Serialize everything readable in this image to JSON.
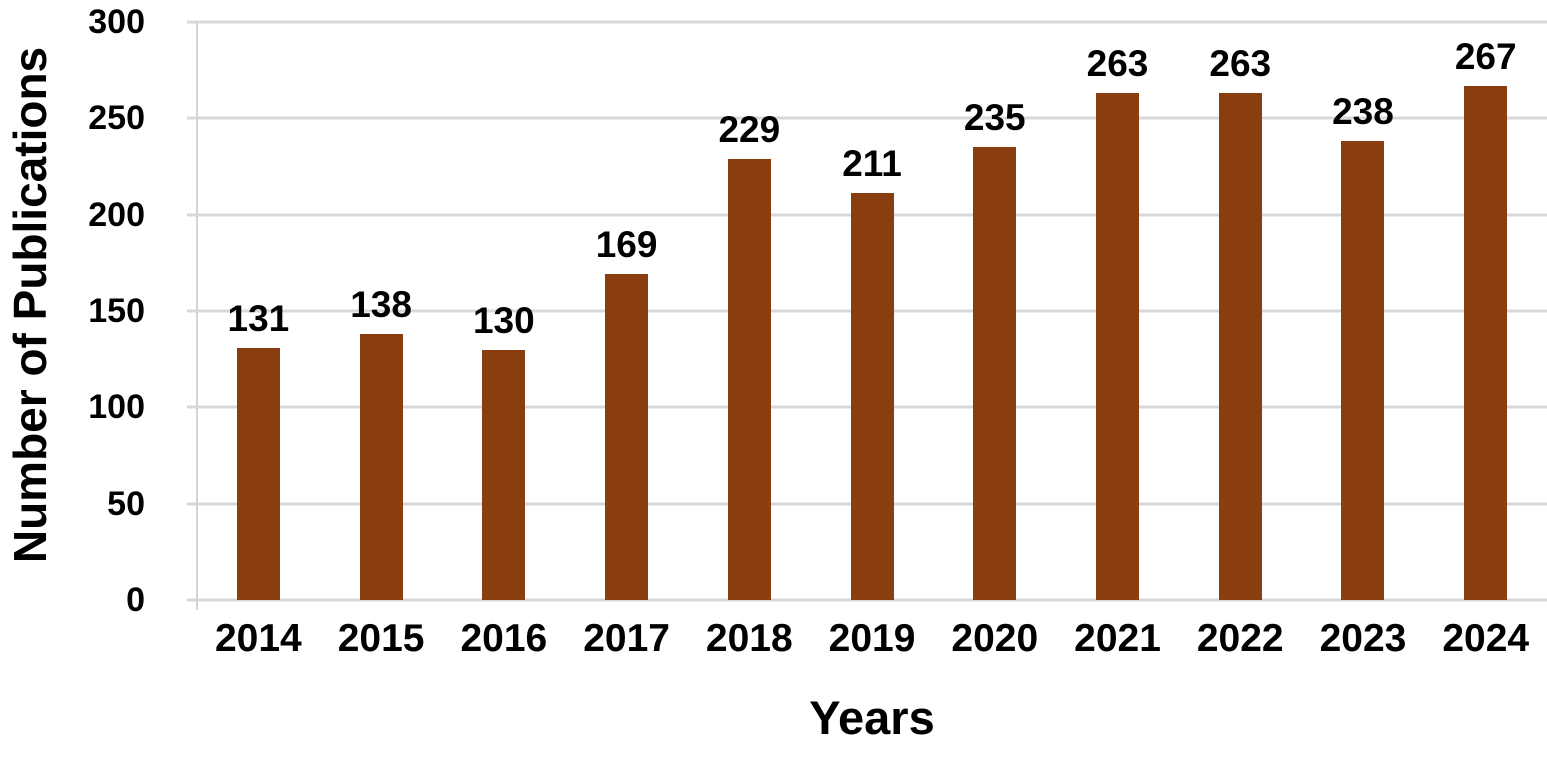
{
  "chart_data": {
    "type": "bar",
    "title": "",
    "categories": [
      "2014",
      "2015",
      "2016",
      "2017",
      "2018",
      "2019",
      "2020",
      "2021",
      "2022",
      "2023",
      "2024"
    ],
    "values": [
      131,
      138,
      130,
      169,
      229,
      211,
      235,
      263,
      263,
      238,
      267
    ],
    "xlabel": "Years",
    "ylabel": "Number of Publications",
    "ylim": [
      0,
      300
    ],
    "yticks": [
      0,
      50,
      100,
      150,
      200,
      250,
      300
    ],
    "grid": true,
    "legend": false,
    "data_labels": true,
    "colors": {
      "bar": "#8A3E0F",
      "gridline": "#D9D9D9",
      "axis_line": "#D4D4D4",
      "text": "#000000",
      "background": "#FFFFFF"
    }
  }
}
